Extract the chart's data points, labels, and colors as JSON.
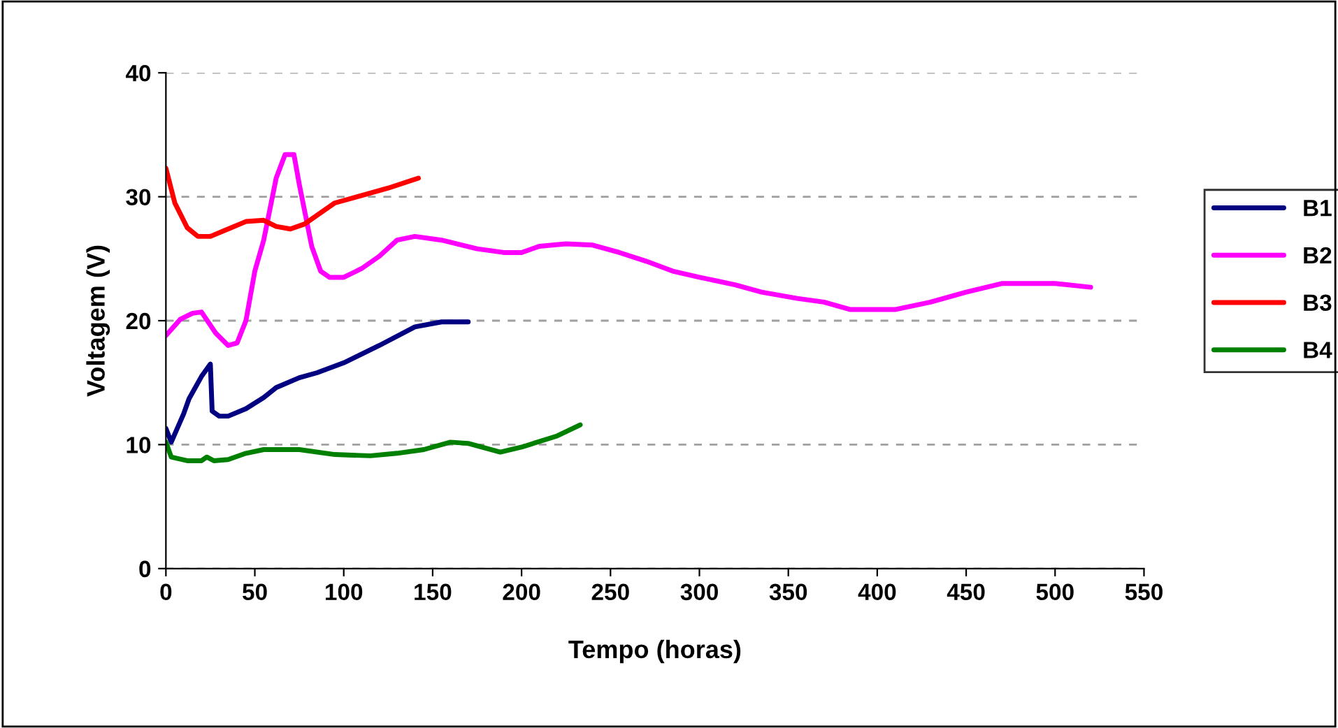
{
  "chart_data": {
    "type": "line",
    "xlabel": "Tempo (horas)",
    "ylabel": "Voltagem (V)",
    "xlim": [
      0,
      550
    ],
    "xticks": [
      0,
      50,
      100,
      150,
      200,
      250,
      300,
      350,
      400,
      450,
      500,
      550
    ],
    "ylim": [
      0,
      40
    ],
    "yticks": [
      0,
      10,
      20,
      30,
      40
    ],
    "grid": "y",
    "legend": "right",
    "marker": "none",
    "line_style": "solid",
    "series": [
      {
        "name": "B1",
        "color": "#000080",
        "x": [
          0,
          3,
          10,
          13,
          20,
          25,
          26,
          30,
          35,
          45,
          55,
          62,
          75,
          85,
          100,
          120,
          140,
          155,
          170
        ],
        "values": [
          11.3,
          10.2,
          12.5,
          13.7,
          15.5,
          16.5,
          12.7,
          12.3,
          12.3,
          12.9,
          13.8,
          14.6,
          15.4,
          15.8,
          16.6,
          18,
          19.5,
          19.9,
          19.9
        ]
      },
      {
        "name": "B2",
        "color": "#ff00ff",
        "x": [
          0,
          8,
          15,
          20,
          28,
          35,
          40,
          45,
          50,
          55,
          62,
          67,
          72,
          75,
          82,
          87,
          92,
          100,
          110,
          120,
          130,
          140,
          155,
          175,
          190,
          200,
          210,
          225,
          240,
          255,
          270,
          285,
          300,
          320,
          335,
          355,
          370,
          385,
          410,
          430,
          450,
          470,
          500,
          520
        ],
        "values": [
          18.8,
          20.1,
          20.6,
          20.7,
          19,
          18,
          18.2,
          20,
          24,
          26.5,
          31.5,
          33.4,
          33.4,
          31,
          26,
          24,
          23.5,
          23.5,
          24.2,
          25.2,
          26.5,
          26.8,
          26.5,
          25.8,
          25.5,
          25.5,
          26,
          26.2,
          26.1,
          25.5,
          24.8,
          24,
          23.5,
          22.9,
          22.3,
          21.8,
          21.5,
          20.9,
          20.9,
          21.5,
          22.3,
          23,
          23,
          22.7
        ]
      },
      {
        "name": "B3",
        "color": "#ff0000",
        "x": [
          0,
          5,
          12,
          18,
          25,
          35,
          45,
          55,
          62,
          70,
          78,
          85,
          95,
          110,
          125,
          142
        ],
        "values": [
          32.3,
          29.5,
          27.5,
          26.8,
          26.8,
          27.4,
          28,
          28.1,
          27.6,
          27.4,
          27.8,
          28.5,
          29.5,
          30.1,
          30.7,
          31.5
        ]
      },
      {
        "name": "B4",
        "color": "#008000",
        "x": [
          0,
          3,
          12,
          20,
          23,
          27,
          35,
          45,
          55,
          75,
          95,
          115,
          130,
          145,
          160,
          170,
          188,
          200,
          220,
          233
        ],
        "values": [
          10.2,
          9,
          8.7,
          8.7,
          9,
          8.7,
          8.8,
          9.3,
          9.6,
          9.6,
          9.2,
          9.1,
          9.3,
          9.6,
          10.2,
          10.1,
          9.4,
          9.8,
          10.7,
          11.6
        ]
      }
    ]
  }
}
